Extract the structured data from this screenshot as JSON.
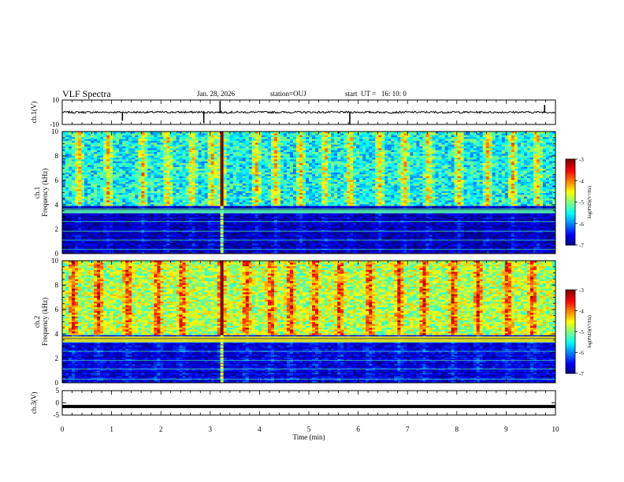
{
  "header": {
    "title": "VLF Spectra",
    "date": "Jan. 28, 2026",
    "station": "station=OUJ",
    "start": "start  UT =   16: 10: 0"
  },
  "chart_data": [
    {
      "type": "line",
      "name": "ch1-waveform",
      "ylabel": "ch.1(V)",
      "ylim": [
        -10,
        10
      ],
      "yticks": [
        "10",
        "-10"
      ],
      "xlim": [
        0,
        10
      ],
      "baseline": 0,
      "spikes": [
        {
          "t": 1.22,
          "v": -7
        },
        {
          "t": 2.87,
          "v": -9
        },
        {
          "t": 3.2,
          "v": 9
        },
        {
          "t": 5.83,
          "v": -10
        },
        {
          "t": 9.78,
          "v": 6
        }
      ]
    },
    {
      "type": "heatmap",
      "name": "ch1-spectrogram",
      "ylabel": "ch.1\nFrequency (kHz)",
      "ylabel_lines": [
        "ch.1",
        "Frequency (kHz)"
      ],
      "ylim": [
        0,
        10
      ],
      "yticks": [
        "0",
        "2",
        "4",
        "6",
        "8",
        "10"
      ],
      "xlim": [
        0,
        10
      ],
      "colorbar": {
        "label": "log(PSD)(V²/Hz)",
        "range": [
          -7,
          -3
        ],
        "ticks": [
          "-3",
          "-4",
          "-5",
          "-6",
          "-7"
        ]
      },
      "level_high": 0.38,
      "level_low": 0.06,
      "cutoff_khz": 3.9,
      "band_khz": [
        3.3,
        3.7
      ],
      "strong_burst_min": 3.2,
      "burst_min": [
        0.3,
        0.9,
        1.6,
        2.1,
        2.6,
        3.0,
        3.2,
        3.9,
        4.3,
        4.8,
        5.3,
        5.8,
        6.4,
        6.9,
        7.4,
        8.0,
        8.6,
        9.1,
        9.6
      ]
    },
    {
      "type": "heatmap",
      "name": "ch2-spectrogram",
      "ylabel": "ch.2\nFrequency (kHz)",
      "ylabel_lines": [
        "ch.2",
        "Frequency (kHz)"
      ],
      "ylim": [
        0,
        10
      ],
      "yticks": [
        "0",
        "2",
        "4",
        "6",
        "8",
        "10"
      ],
      "xlim": [
        0,
        10
      ],
      "colorbar": {
        "label": "log(PSD)(V²/Hz)",
        "range": [
          -7,
          -3
        ],
        "ticks": [
          "-3",
          "-4",
          "-5",
          "-6",
          "-7"
        ]
      },
      "level_high": 0.55,
      "level_low": 0.1,
      "cutoff_khz": 3.9,
      "band_khz": [
        3.3,
        3.8
      ],
      "strong_burst_min": 3.2,
      "burst_min": [
        0.2,
        0.7,
        1.3,
        1.9,
        2.4,
        3.2,
        3.7,
        4.2,
        4.6,
        5.1,
        5.6,
        6.2,
        6.8,
        7.3,
        7.9,
        8.4,
        9.0,
        9.5
      ]
    },
    {
      "type": "line",
      "name": "ch3-waveform",
      "ylabel": "ch.3(V)",
      "ylim": [
        -5,
        5
      ],
      "yticks": [
        "5",
        "0",
        "-5"
      ],
      "xlim": [
        0,
        10
      ],
      "baseline": -1.5,
      "xlabel": "Time (min)",
      "xticks": [
        "0",
        "1",
        "2",
        "3",
        "4",
        "5",
        "6",
        "7",
        "8",
        "9",
        "10"
      ]
    }
  ]
}
